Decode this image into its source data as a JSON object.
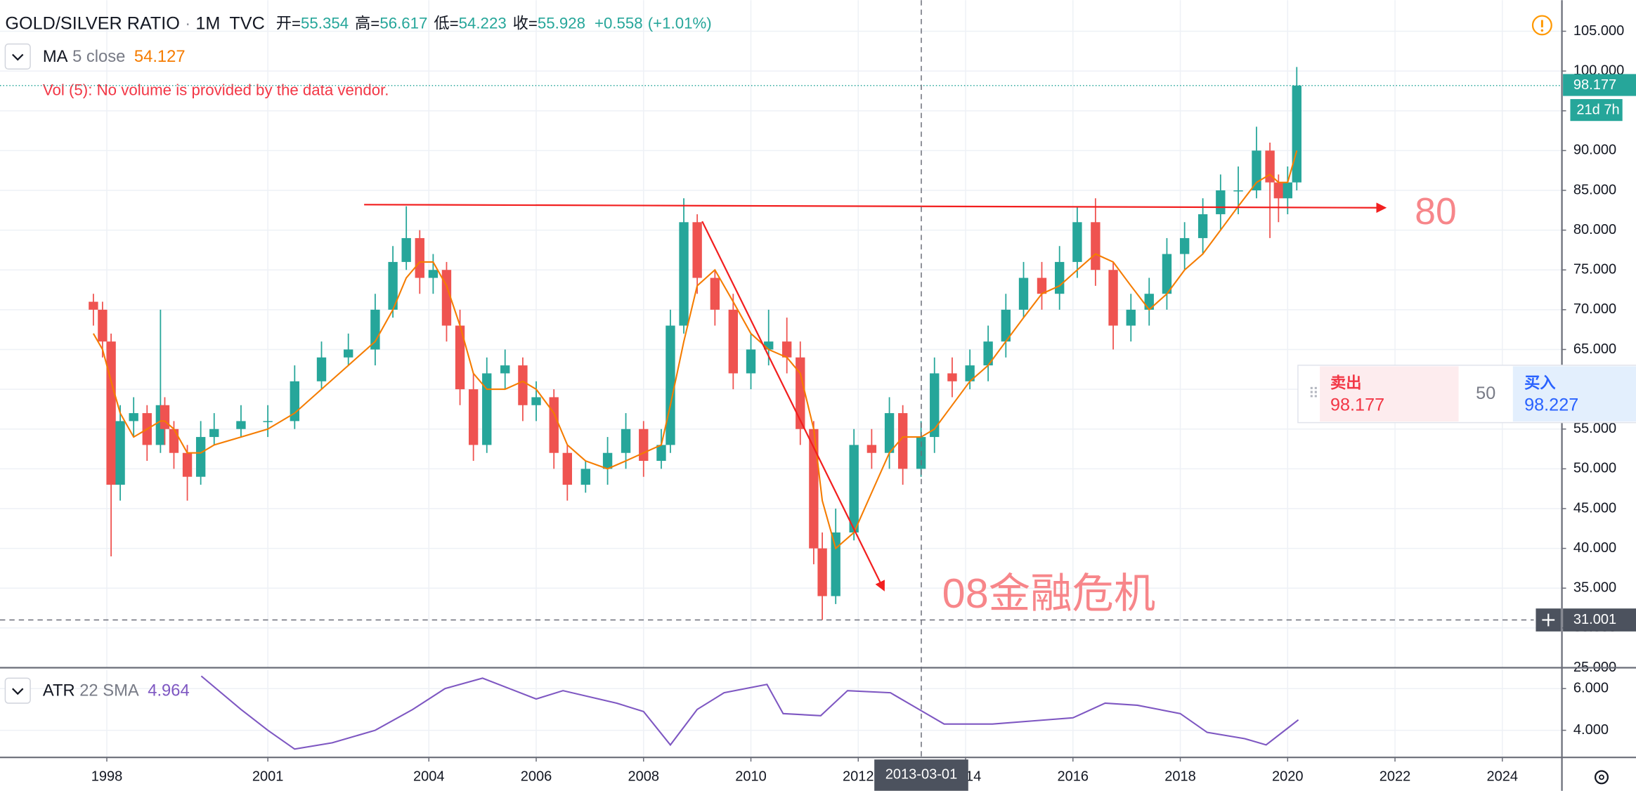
{
  "chart_data": {
    "type": "candlestick",
    "title": "GOLD/SILVER RATIO",
    "separator": "·",
    "interval": "1M",
    "source": "TVC",
    "ohlc_legend": [
      {
        "label": "开=",
        "value": "55.354"
      },
      {
        "label": "高=",
        "value": "56.617"
      },
      {
        "label": "低=",
        "value": "54.223"
      },
      {
        "label": "收=",
        "value": "55.928"
      }
    ],
    "change": "+0.558",
    "change_pct": "(+1.01%)",
    "volume_note": "Vol (5): No volume is provided by the data vendor.",
    "up_color": "#26a69a",
    "down_color": "#ef5350",
    "grid": true,
    "xlim": [
      1996.01,
      2025.11
    ],
    "xticks": [
      1998,
      2001,
      2004,
      2006,
      2008,
      2010,
      2012,
      2014,
      2016,
      2018,
      2020,
      2022,
      2024
    ],
    "ylim": [
      25,
      108.9
    ],
    "yticks": [
      {
        "value": 25,
        "label": "25.000"
      },
      {
        "value": 30,
        "label": "30.000"
      },
      {
        "value": 35,
        "label": "35.000"
      },
      {
        "value": 40,
        "label": "40.000"
      },
      {
        "value": 45,
        "label": "45.000"
      },
      {
        "value": 50,
        "label": "50.000"
      },
      {
        "value": 55,
        "label": "55.000"
      },
      {
        "value": 60,
        "label": "60.000"
      },
      {
        "value": 65,
        "label": "65.000"
      },
      {
        "value": 70,
        "label": "70.000"
      },
      {
        "value": 75,
        "label": "75.000"
      },
      {
        "value": 80,
        "label": "80.000"
      },
      {
        "value": 85,
        "label": "85.000"
      },
      {
        "value": 90,
        "label": "90.000"
      },
      {
        "value": 95,
        "label": "95.000"
      },
      {
        "value": 100,
        "label": "100.000"
      },
      {
        "value": 105,
        "label": "105.000"
      }
    ],
    "x": [
      1997.75,
      1997.92,
      1998.08,
      1998.25,
      1998.5,
      1998.75,
      1999.0,
      1999.08,
      1999.25,
      1999.5,
      1999.75,
      2000.0,
      2000.5,
      2001.0,
      2001.5,
      2002.0,
      2002.5,
      2003.0,
      2003.33,
      2003.58,
      2003.83,
      2004.08,
      2004.33,
      2004.58,
      2004.83,
      2005.08,
      2005.42,
      2005.75,
      2006.0,
      2006.33,
      2006.58,
      2006.92,
      2007.33,
      2007.67,
      2008.0,
      2008.33,
      2008.5,
      2008.75,
      2009.0,
      2009.33,
      2009.67,
      2010.0,
      2010.33,
      2010.67,
      2010.92,
      2011.17,
      2011.33,
      2011.58,
      2011.92,
      2012.25,
      2012.58,
      2012.83,
      2013.17,
      2013.42,
      2013.75,
      2014.08,
      2014.42,
      2014.75,
      2015.08,
      2015.42,
      2015.75,
      2016.08,
      2016.42,
      2016.75,
      2017.08,
      2017.42,
      2017.75,
      2018.08,
      2018.42,
      2018.75,
      2019.08,
      2019.42,
      2019.67,
      2019.83,
      2020.0,
      2020.17
    ],
    "open": [
      71,
      70,
      66,
      48,
      56,
      57,
      53,
      58,
      55,
      52,
      49,
      54,
      55,
      56,
      56,
      61,
      64,
      65,
      70,
      76,
      79,
      74,
      75,
      68,
      60,
      53,
      62,
      63,
      58,
      59,
      52,
      48,
      50,
      52,
      55,
      51,
      53,
      68,
      81,
      74,
      70,
      62,
      65,
      66,
      64,
      55,
      40,
      34,
      42,
      53,
      52,
      57,
      50,
      54,
      62,
      61,
      63,
      66,
      70,
      74,
      72,
      76,
      81,
      75,
      68,
      70,
      72,
      77,
      79,
      82,
      85,
      85,
      90,
      86,
      84,
      86
    ],
    "high": [
      72,
      71,
      67,
      58,
      59,
      58,
      70,
      59,
      56,
      53,
      56,
      57,
      58,
      58,
      63,
      66,
      67,
      72,
      78,
      83,
      80,
      77,
      76,
      70,
      62,
      64,
      65,
      64,
      61,
      60,
      53,
      51,
      54,
      57,
      56,
      55,
      70,
      84,
      82,
      75,
      72,
      67,
      70,
      69,
      66,
      56,
      42,
      45,
      55,
      55,
      59,
      58,
      56,
      64,
      64,
      65,
      68,
      72,
      76,
      76,
      78,
      83,
      84,
      76,
      72,
      74,
      79,
      81,
      84,
      87,
      88,
      93,
      91,
      87,
      88,
      100.5
    ],
    "low": [
      68,
      64,
      39,
      46,
      54,
      51,
      52,
      53,
      50,
      46,
      48,
      53,
      54,
      54,
      55,
      60,
      63,
      63,
      69,
      75,
      72,
      72,
      66,
      58,
      51,
      52,
      60,
      56,
      56,
      50,
      46,
      47,
      48,
      50,
      49,
      50,
      52,
      67,
      72,
      68,
      60,
      60,
      63,
      62,
      53,
      38,
      31,
      33,
      41,
      50,
      50,
      48,
      49,
      52,
      59,
      60,
      61,
      64,
      69,
      70,
      70,
      74,
      73,
      65,
      66,
      68,
      70,
      75,
      77,
      80,
      82,
      84,
      79,
      81,
      82,
      85
    ],
    "close": [
      70,
      66,
      48,
      56,
      57,
      53,
      58,
      55,
      52,
      49,
      54,
      55,
      56,
      56,
      61,
      64,
      65,
      70,
      76,
      79,
      74,
      75,
      68,
      60,
      53,
      62,
      63,
      58,
      59,
      52,
      48,
      50,
      52,
      55,
      51,
      53,
      68,
      81,
      74,
      70,
      62,
      65,
      66,
      64,
      55,
      40,
      34,
      42,
      53,
      52,
      57,
      50,
      54,
      62,
      61,
      63,
      66,
      70,
      74,
      72,
      76,
      81,
      75,
      68,
      70,
      72,
      77,
      79,
      82,
      85,
      85,
      90,
      86,
      84,
      86,
      98.177
    ],
    "ma": {
      "name": "MA",
      "params": "5 close",
      "value": 54.127,
      "color": "#f57c00",
      "values": [
        67,
        65,
        61,
        57,
        54,
        55,
        56,
        56,
        55,
        52,
        52,
        53,
        54,
        55,
        57,
        60,
        63,
        66,
        70,
        74,
        76,
        76,
        73,
        68,
        62,
        60,
        60,
        61,
        60,
        57,
        53,
        51,
        50,
        51,
        52,
        53,
        58,
        66,
        73,
        75,
        71,
        67,
        65,
        64,
        62,
        55,
        46,
        40,
        42,
        47,
        52,
        54,
        54,
        55,
        58,
        61,
        63,
        66,
        69,
        72,
        73,
        75,
        77,
        76,
        73,
        70,
        72,
        75,
        77,
        80,
        83,
        86,
        87,
        86,
        86,
        90
      ]
    },
    "atr": {
      "name": "ATR",
      "params": "22 SMA",
      "value": 4.964,
      "color": "#7e57c2",
      "ylim": [
        2.7,
        6.9
      ],
      "yticks": [
        {
          "value": 4,
          "label": "4.000"
        },
        {
          "value": 6,
          "label": "6.000"
        }
      ],
      "x": [
        1999.76,
        2000.5,
        2001.0,
        2001.5,
        2002.2,
        2003.0,
        2003.7,
        2004.3,
        2005.0,
        2005.5,
        2006.0,
        2006.5,
        2007.5,
        2008.0,
        2008.5,
        2009.0,
        2009.5,
        2010.3,
        2010.6,
        2011.3,
        2011.8,
        2012.6,
        2013.2,
        2013.6,
        2014.5,
        2015.5,
        2016.0,
        2016.6,
        2017.2,
        2017.6,
        2018.0,
        2018.5,
        2019.2,
        2019.6,
        2020.0,
        2020.2
      ],
      "values": [
        6.6,
        5.0,
        4.0,
        3.1,
        3.4,
        4.0,
        5.0,
        6.0,
        6.5,
        6.0,
        5.5,
        5.9,
        5.3,
        4.9,
        3.3,
        5.0,
        5.8,
        6.2,
        4.8,
        4.7,
        5.9,
        5.8,
        4.9,
        4.3,
        4.3,
        4.5,
        4.6,
        5.3,
        5.2,
        5.0,
        4.8,
        3.9,
        3.6,
        3.3,
        4.1,
        4.5
      ]
    },
    "last_price": 98.177,
    "countdown": "21d 7h",
    "crosshair": {
      "x_label": "2013-03-01",
      "y_value": 31.001
    },
    "annotations": [
      "80",
      "08金融危机"
    ],
    "trade": {
      "sell_label": "卖出",
      "sell_price": 98.177,
      "spread": 50,
      "buy_label": "买入",
      "buy_price": 98.227
    }
  }
}
